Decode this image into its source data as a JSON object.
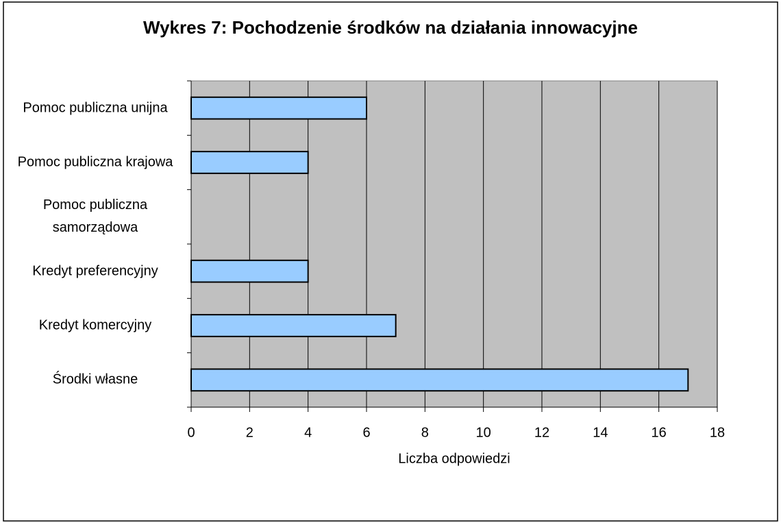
{
  "chart_data": {
    "type": "barh",
    "title": "Wykres 7: Pochodzenie środków na działania innowacyjne",
    "xlabel": "Liczba odpowiedzi",
    "categories": [
      "Pomoc publiczna unijna",
      "Pomoc publiczna krajowa",
      "Pomoc publiczna samorządowa",
      "Kredyt preferencyjny",
      "Kredyt komercyjny",
      "Środki własne"
    ],
    "values": [
      6,
      4,
      0,
      4,
      7,
      17
    ],
    "color": "#99ccff",
    "xlim": [
      0,
      18
    ],
    "xticks": [
      0,
      2,
      4,
      6,
      8,
      10,
      12,
      14,
      16,
      18
    ],
    "grid": true
  }
}
